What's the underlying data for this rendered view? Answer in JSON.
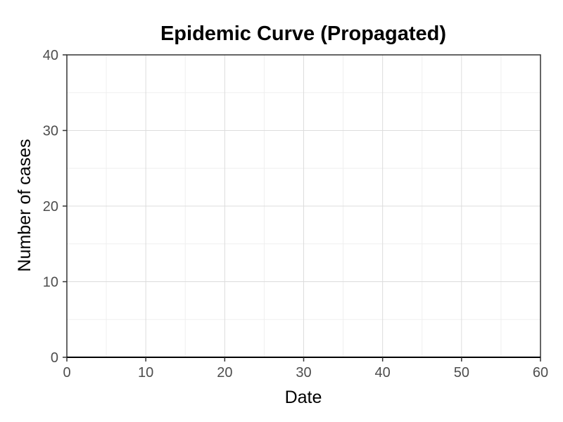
{
  "chart_data": {
    "type": "bar",
    "title": "Epidemic Curve (Propagated)",
    "xlabel": "Date",
    "ylabel": "Number of cases",
    "xlim": [
      0,
      60
    ],
    "ylim": [
      0,
      40
    ],
    "x_ticks": [
      0,
      10,
      20,
      30,
      40,
      50,
      60
    ],
    "y_ticks": [
      0,
      10,
      20,
      30,
      40
    ],
    "x_minor_ticks": [
      5,
      15,
      25,
      35,
      45,
      55
    ],
    "y_minor_ticks": [
      5,
      15,
      25,
      35
    ],
    "grid": true,
    "series": [
      {
        "x": [],
        "values": []
      }
    ],
    "colors": {
      "grid_major": "#dcdcdc",
      "grid_minor": "#efefef",
      "frame": "#333333",
      "tick_text": "#4d4d4d",
      "bar_fill": "#4682b4"
    }
  }
}
